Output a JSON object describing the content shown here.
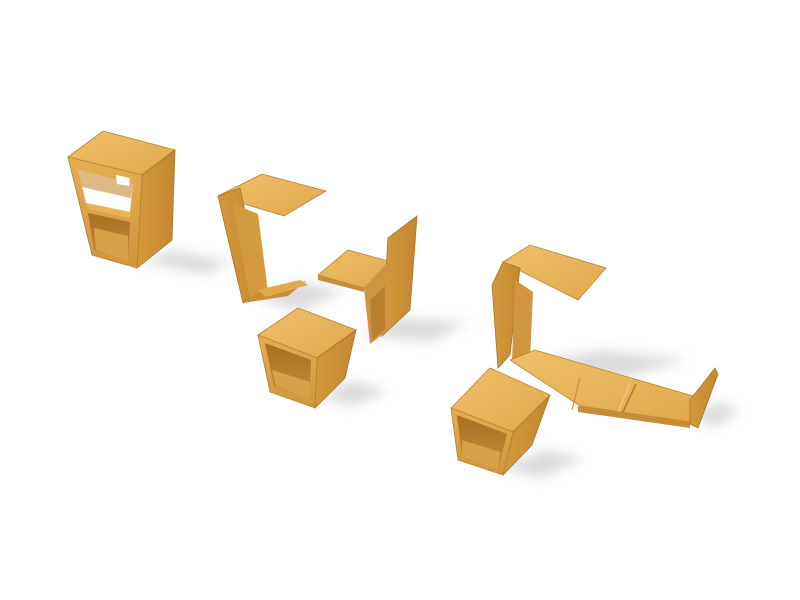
{
  "scene": {
    "description_label": "",
    "background_color": "#ffffff",
    "wood_light": "#e9b35a",
    "wood_mid": "#d49a3e",
    "wood_dark": "#b07a2a",
    "shadow_color": "#d9d9d9",
    "objects": [
      "open-box-stool",
      "c-shaped-side-table",
      "l-shaped-chair",
      "small-open-cube",
      "c-shaped-lounge-base",
      "open-cube-with-divider"
    ]
  }
}
